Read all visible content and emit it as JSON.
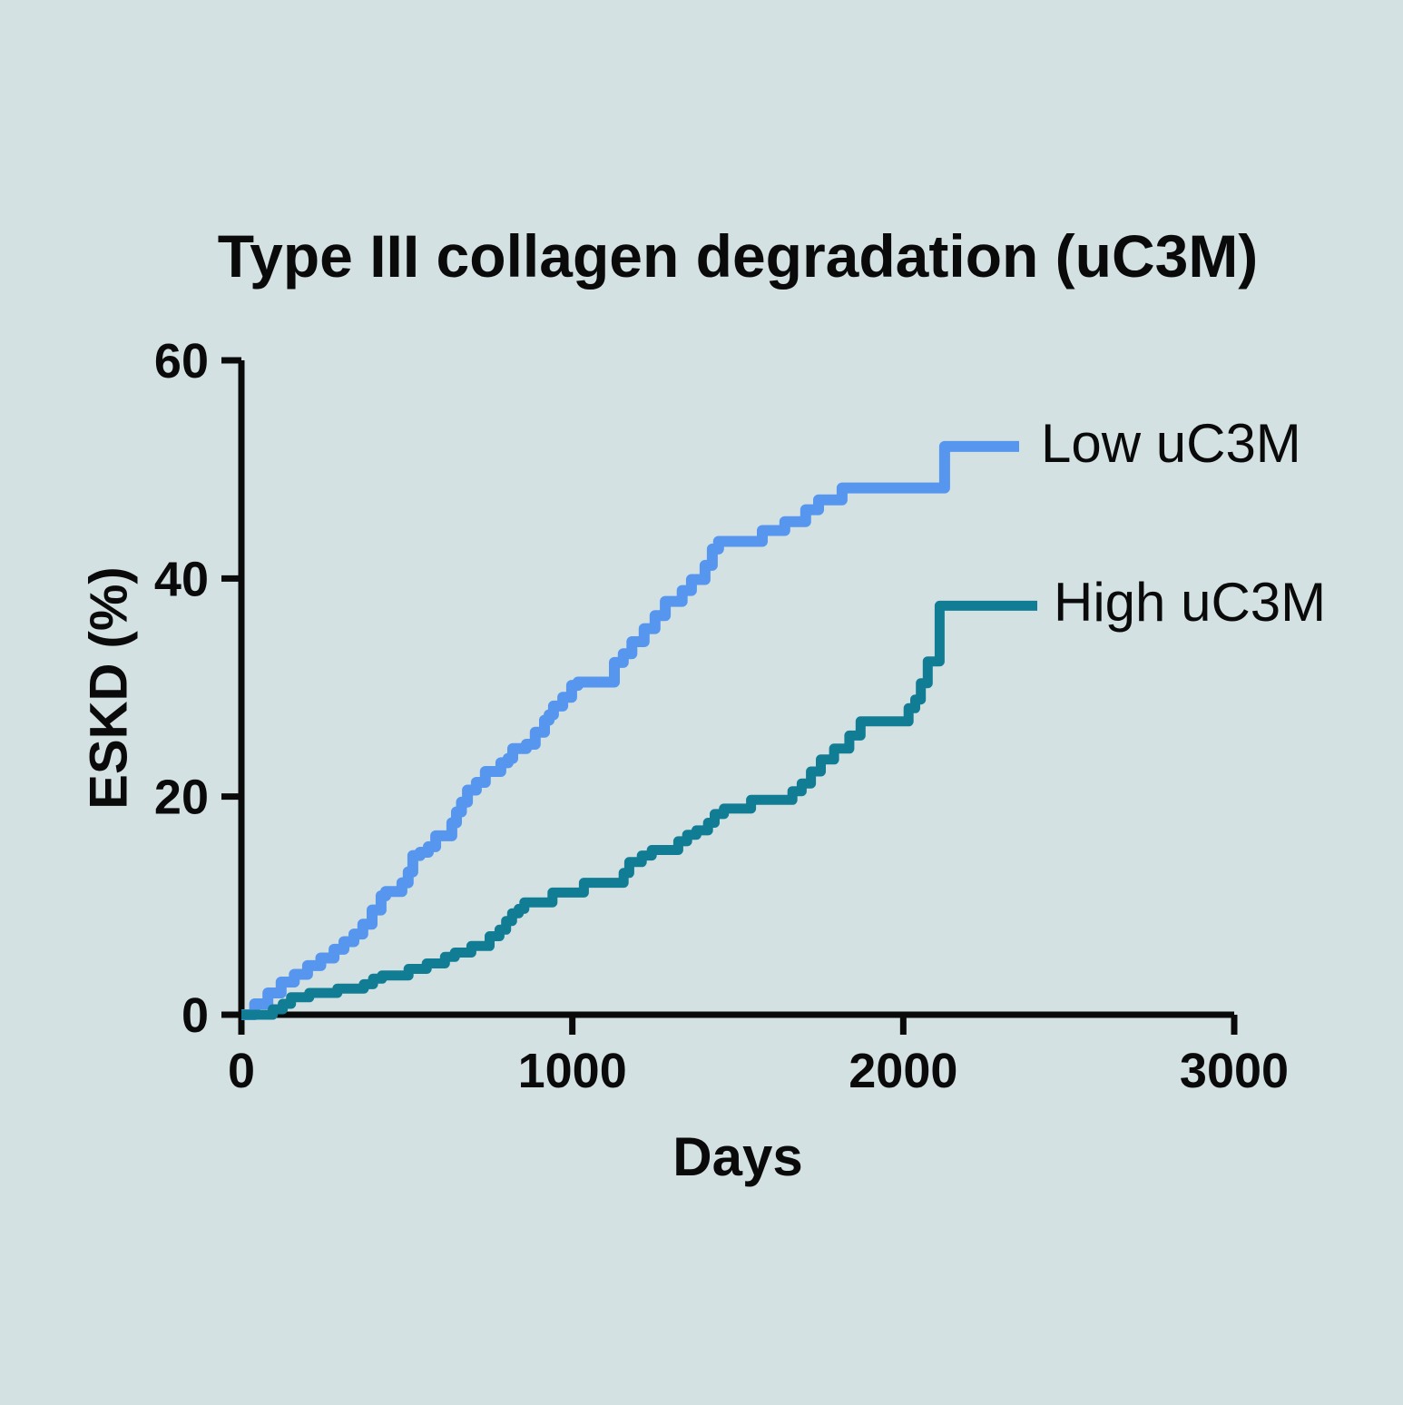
{
  "title": "Type III collagen degradation (uC3M)",
  "colors": {
    "background": "#d3e1e3",
    "axis": "#0a0a0a",
    "text": "#0a0a0a",
    "low_series": "#5796ee",
    "high_series": "#117d94"
  },
  "chart_data": {
    "type": "line",
    "subtype": "kaplan-meier-cumulative-incidence-step",
    "title": "Type III collagen degradation (uC3M)",
    "xlabel": "Days",
    "ylabel": "ESKD (%)",
    "xlim": [
      0,
      3000
    ],
    "ylim": [
      0,
      60
    ],
    "x_ticks": [
      0,
      1000,
      2000,
      3000
    ],
    "y_ticks": [
      0,
      20,
      40,
      60
    ],
    "grid": false,
    "legend_position": "right-of-line-ends",
    "series": [
      {
        "name": "Low uC3M",
        "color": "#5796ee",
        "points": [
          [
            0,
            0
          ],
          [
            40,
            1.0
          ],
          [
            80,
            2.0
          ],
          [
            120,
            3.0
          ],
          [
            160,
            3.7
          ],
          [
            200,
            4.5
          ],
          [
            240,
            5.2
          ],
          [
            280,
            6.0
          ],
          [
            310,
            6.7
          ],
          [
            340,
            7.4
          ],
          [
            367,
            8.3
          ],
          [
            395,
            9.6
          ],
          [
            422,
            10.9
          ],
          [
            436,
            11.3
          ],
          [
            485,
            12.1
          ],
          [
            504,
            13.1
          ],
          [
            518,
            14.6
          ],
          [
            540,
            14.9
          ],
          [
            565,
            15.4
          ],
          [
            587,
            16.4
          ],
          [
            636,
            17.6
          ],
          [
            650,
            18.6
          ],
          [
            665,
            19.5
          ],
          [
            683,
            20.6
          ],
          [
            710,
            21.3
          ],
          [
            737,
            22.3
          ],
          [
            784,
            23.1
          ],
          [
            806,
            23.5
          ],
          [
            820,
            24.4
          ],
          [
            861,
            24.8
          ],
          [
            888,
            25.9
          ],
          [
            916,
            27.0
          ],
          [
            930,
            27.5
          ],
          [
            943,
            28.3
          ],
          [
            971,
            29.1
          ],
          [
            998,
            30.2
          ],
          [
            1017,
            30.5
          ],
          [
            1127,
            32.3
          ],
          [
            1154,
            33.1
          ],
          [
            1180,
            34.2
          ],
          [
            1217,
            35.4
          ],
          [
            1250,
            36.6
          ],
          [
            1281,
            37.9
          ],
          [
            1332,
            38.9
          ],
          [
            1360,
            39.9
          ],
          [
            1401,
            41.2
          ],
          [
            1423,
            42.7
          ],
          [
            1442,
            43.4
          ],
          [
            1574,
            44.4
          ],
          [
            1642,
            45.2
          ],
          [
            1705,
            46.3
          ],
          [
            1744,
            47.2
          ],
          [
            1815,
            48.3
          ],
          [
            2125,
            52.1
          ],
          [
            2350,
            52.1
          ]
        ]
      },
      {
        "name": "High uC3M",
        "color": "#117d94",
        "points": [
          [
            0,
            0
          ],
          [
            95,
            0.5
          ],
          [
            125,
            1.0
          ],
          [
            150,
            1.6
          ],
          [
            205,
            2.0
          ],
          [
            290,
            2.4
          ],
          [
            370,
            2.8
          ],
          [
            398,
            3.3
          ],
          [
            425,
            3.6
          ],
          [
            505,
            4.2
          ],
          [
            560,
            4.7
          ],
          [
            615,
            5.3
          ],
          [
            645,
            5.7
          ],
          [
            695,
            6.3
          ],
          [
            750,
            7.2
          ],
          [
            780,
            7.8
          ],
          [
            800,
            8.6
          ],
          [
            818,
            9.3
          ],
          [
            838,
            9.7
          ],
          [
            855,
            10.3
          ],
          [
            940,
            11.2
          ],
          [
            1035,
            12.1
          ],
          [
            1155,
            13.0
          ],
          [
            1172,
            14.0
          ],
          [
            1210,
            14.6
          ],
          [
            1240,
            15.1
          ],
          [
            1320,
            15.9
          ],
          [
            1347,
            16.5
          ],
          [
            1375,
            16.9
          ],
          [
            1410,
            17.6
          ],
          [
            1430,
            18.4
          ],
          [
            1458,
            18.9
          ],
          [
            1540,
            19.7
          ],
          [
            1665,
            20.5
          ],
          [
            1693,
            21.2
          ],
          [
            1721,
            22.3
          ],
          [
            1751,
            23.4
          ],
          [
            1791,
            24.4
          ],
          [
            1837,
            25.6
          ],
          [
            1871,
            26.9
          ],
          [
            2016,
            28.1
          ],
          [
            2036,
            28.9
          ],
          [
            2053,
            30.4
          ],
          [
            2074,
            32.4
          ],
          [
            2110,
            37.5
          ],
          [
            2405,
            37.5
          ]
        ]
      }
    ]
  }
}
